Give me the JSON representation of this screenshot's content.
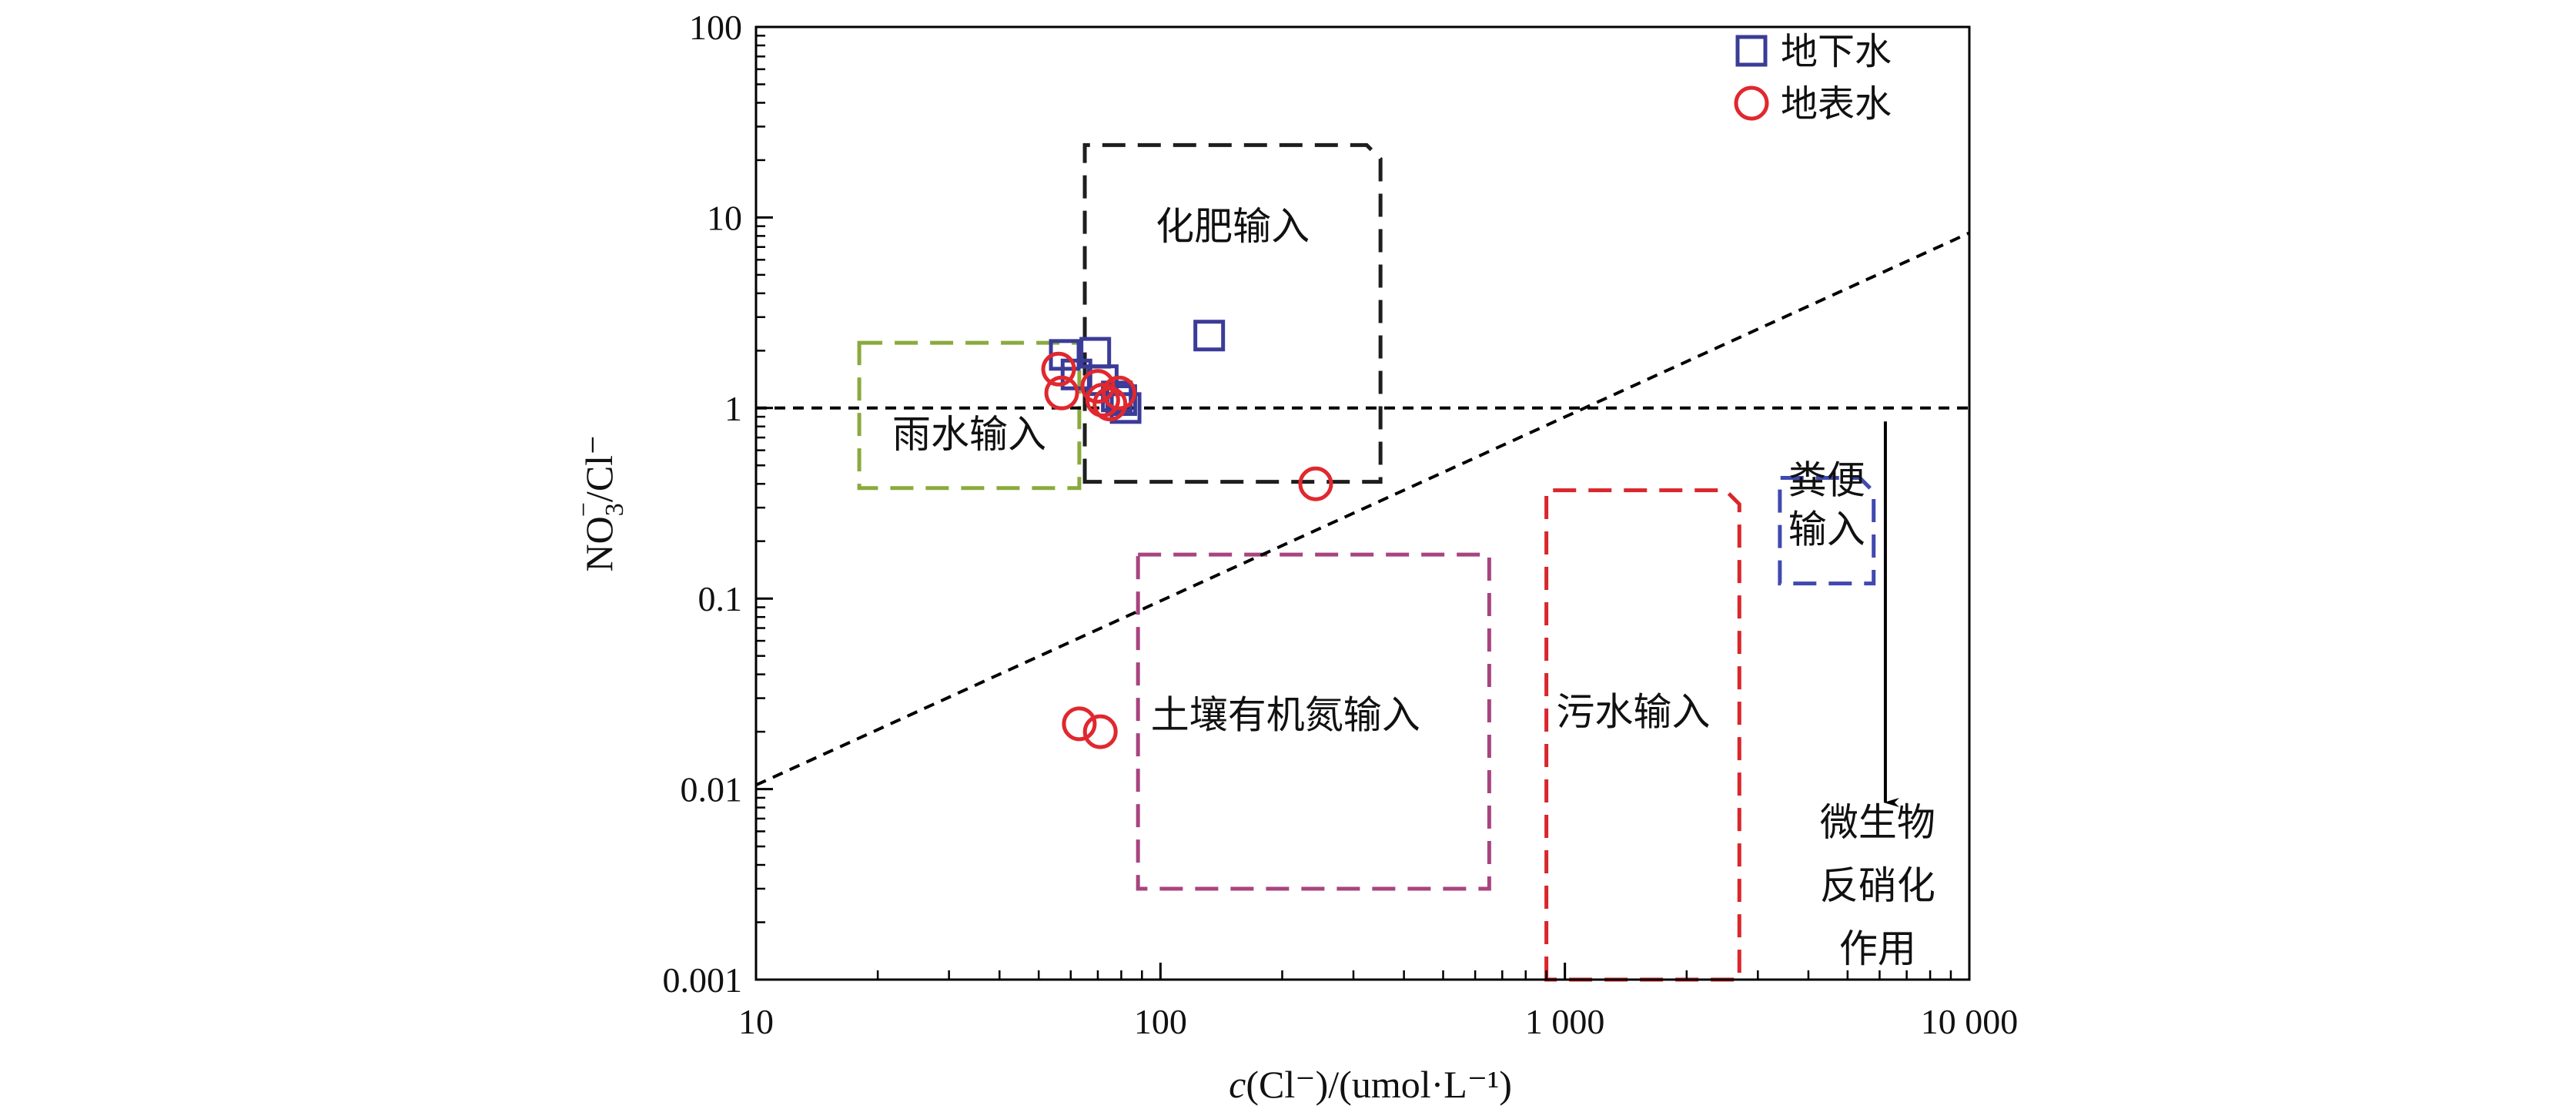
{
  "chart_data": {
    "type": "scatter",
    "xscale": "log",
    "yscale": "log",
    "xlim": [
      10,
      10000
    ],
    "ylim": [
      0.001,
      100
    ],
    "x_ticks": [
      {
        "value": 10,
        "label": "10"
      },
      {
        "value": 100,
        "label": "100"
      },
      {
        "value": 1000,
        "label": "1 000"
      },
      {
        "value": 10000,
        "label": "10 000"
      }
    ],
    "y_ticks": [
      {
        "value": 0.001,
        "label": "0.001"
      },
      {
        "value": 0.01,
        "label": "0.01"
      },
      {
        "value": 0.1,
        "label": "0.1"
      },
      {
        "value": 1,
        "label": "1"
      },
      {
        "value": 10,
        "label": "10"
      },
      {
        "value": 100,
        "label": "100"
      }
    ],
    "xlabel": {
      "italic": "c",
      "rest": "(Cl⁻)/(umol·L⁻¹)"
    },
    "ylabel": {
      "main": "NO",
      "sub": "3",
      "sup": "−",
      "rest": "/Cl⁻"
    },
    "legend": {
      "position": "top-right"
    },
    "series": [
      {
        "name": "地下水",
        "marker": "square",
        "color": "#3b3b98",
        "points": [
          [
            58,
            1.9
          ],
          [
            62,
            1.5
          ],
          [
            69,
            1.95
          ],
          [
            72,
            1.4
          ],
          [
            78,
            1.15
          ],
          [
            80,
            1.1
          ],
          [
            82,
            1.0
          ],
          [
            132,
            2.4
          ]
        ]
      },
      {
        "name": "地表水",
        "marker": "circle",
        "color": "#e0282e",
        "points": [
          [
            56,
            1.6
          ],
          [
            57,
            1.2
          ],
          [
            70,
            1.3
          ],
          [
            72,
            1.1
          ],
          [
            75,
            1.05
          ],
          [
            79,
            1.2
          ],
          [
            242,
            0.4
          ],
          [
            63,
            0.022
          ],
          [
            71,
            0.02
          ]
        ]
      }
    ],
    "reference_lines": [
      {
        "kind": "horizontal",
        "y": 1,
        "style": "dashed",
        "color": "#000000"
      },
      {
        "kind": "segment",
        "from": [
          10,
          0.0105
        ],
        "to": [
          10000,
          8.3
        ],
        "style": "dashed",
        "color": "#000000"
      }
    ],
    "regions": [
      {
        "label": "化肥输入",
        "color": "#1e1e1e",
        "x": [
          65,
          350
        ],
        "y": [
          0.41,
          24
        ],
        "clipped_corner": "top-right"
      },
      {
        "label": "雨水输入",
        "color": "#8aaa3c",
        "x": [
          18,
          63
        ],
        "y": [
          0.38,
          2.2
        ]
      },
      {
        "label": "土壤有机氮输入",
        "color": "#a8447f",
        "x": [
          88,
          650
        ],
        "y": [
          0.003,
          0.17
        ]
      },
      {
        "label": "污水输入",
        "color": "#d9262b",
        "x": [
          900,
          2700
        ],
        "y": [
          0.001,
          0.37
        ],
        "clipped_corner": "top-right"
      },
      {
        "label": "粪便\n输入",
        "color": "#4049b0",
        "x": [
          3400,
          5800
        ],
        "y": [
          0.12,
          0.43
        ],
        "clipped_corner": "top-right"
      }
    ],
    "annotations": [
      {
        "text": "微生物\n反硝化\n作用",
        "arrow": {
          "x": 6200,
          "from_y": 0.85,
          "to_y": 0.0085
        }
      }
    ]
  }
}
